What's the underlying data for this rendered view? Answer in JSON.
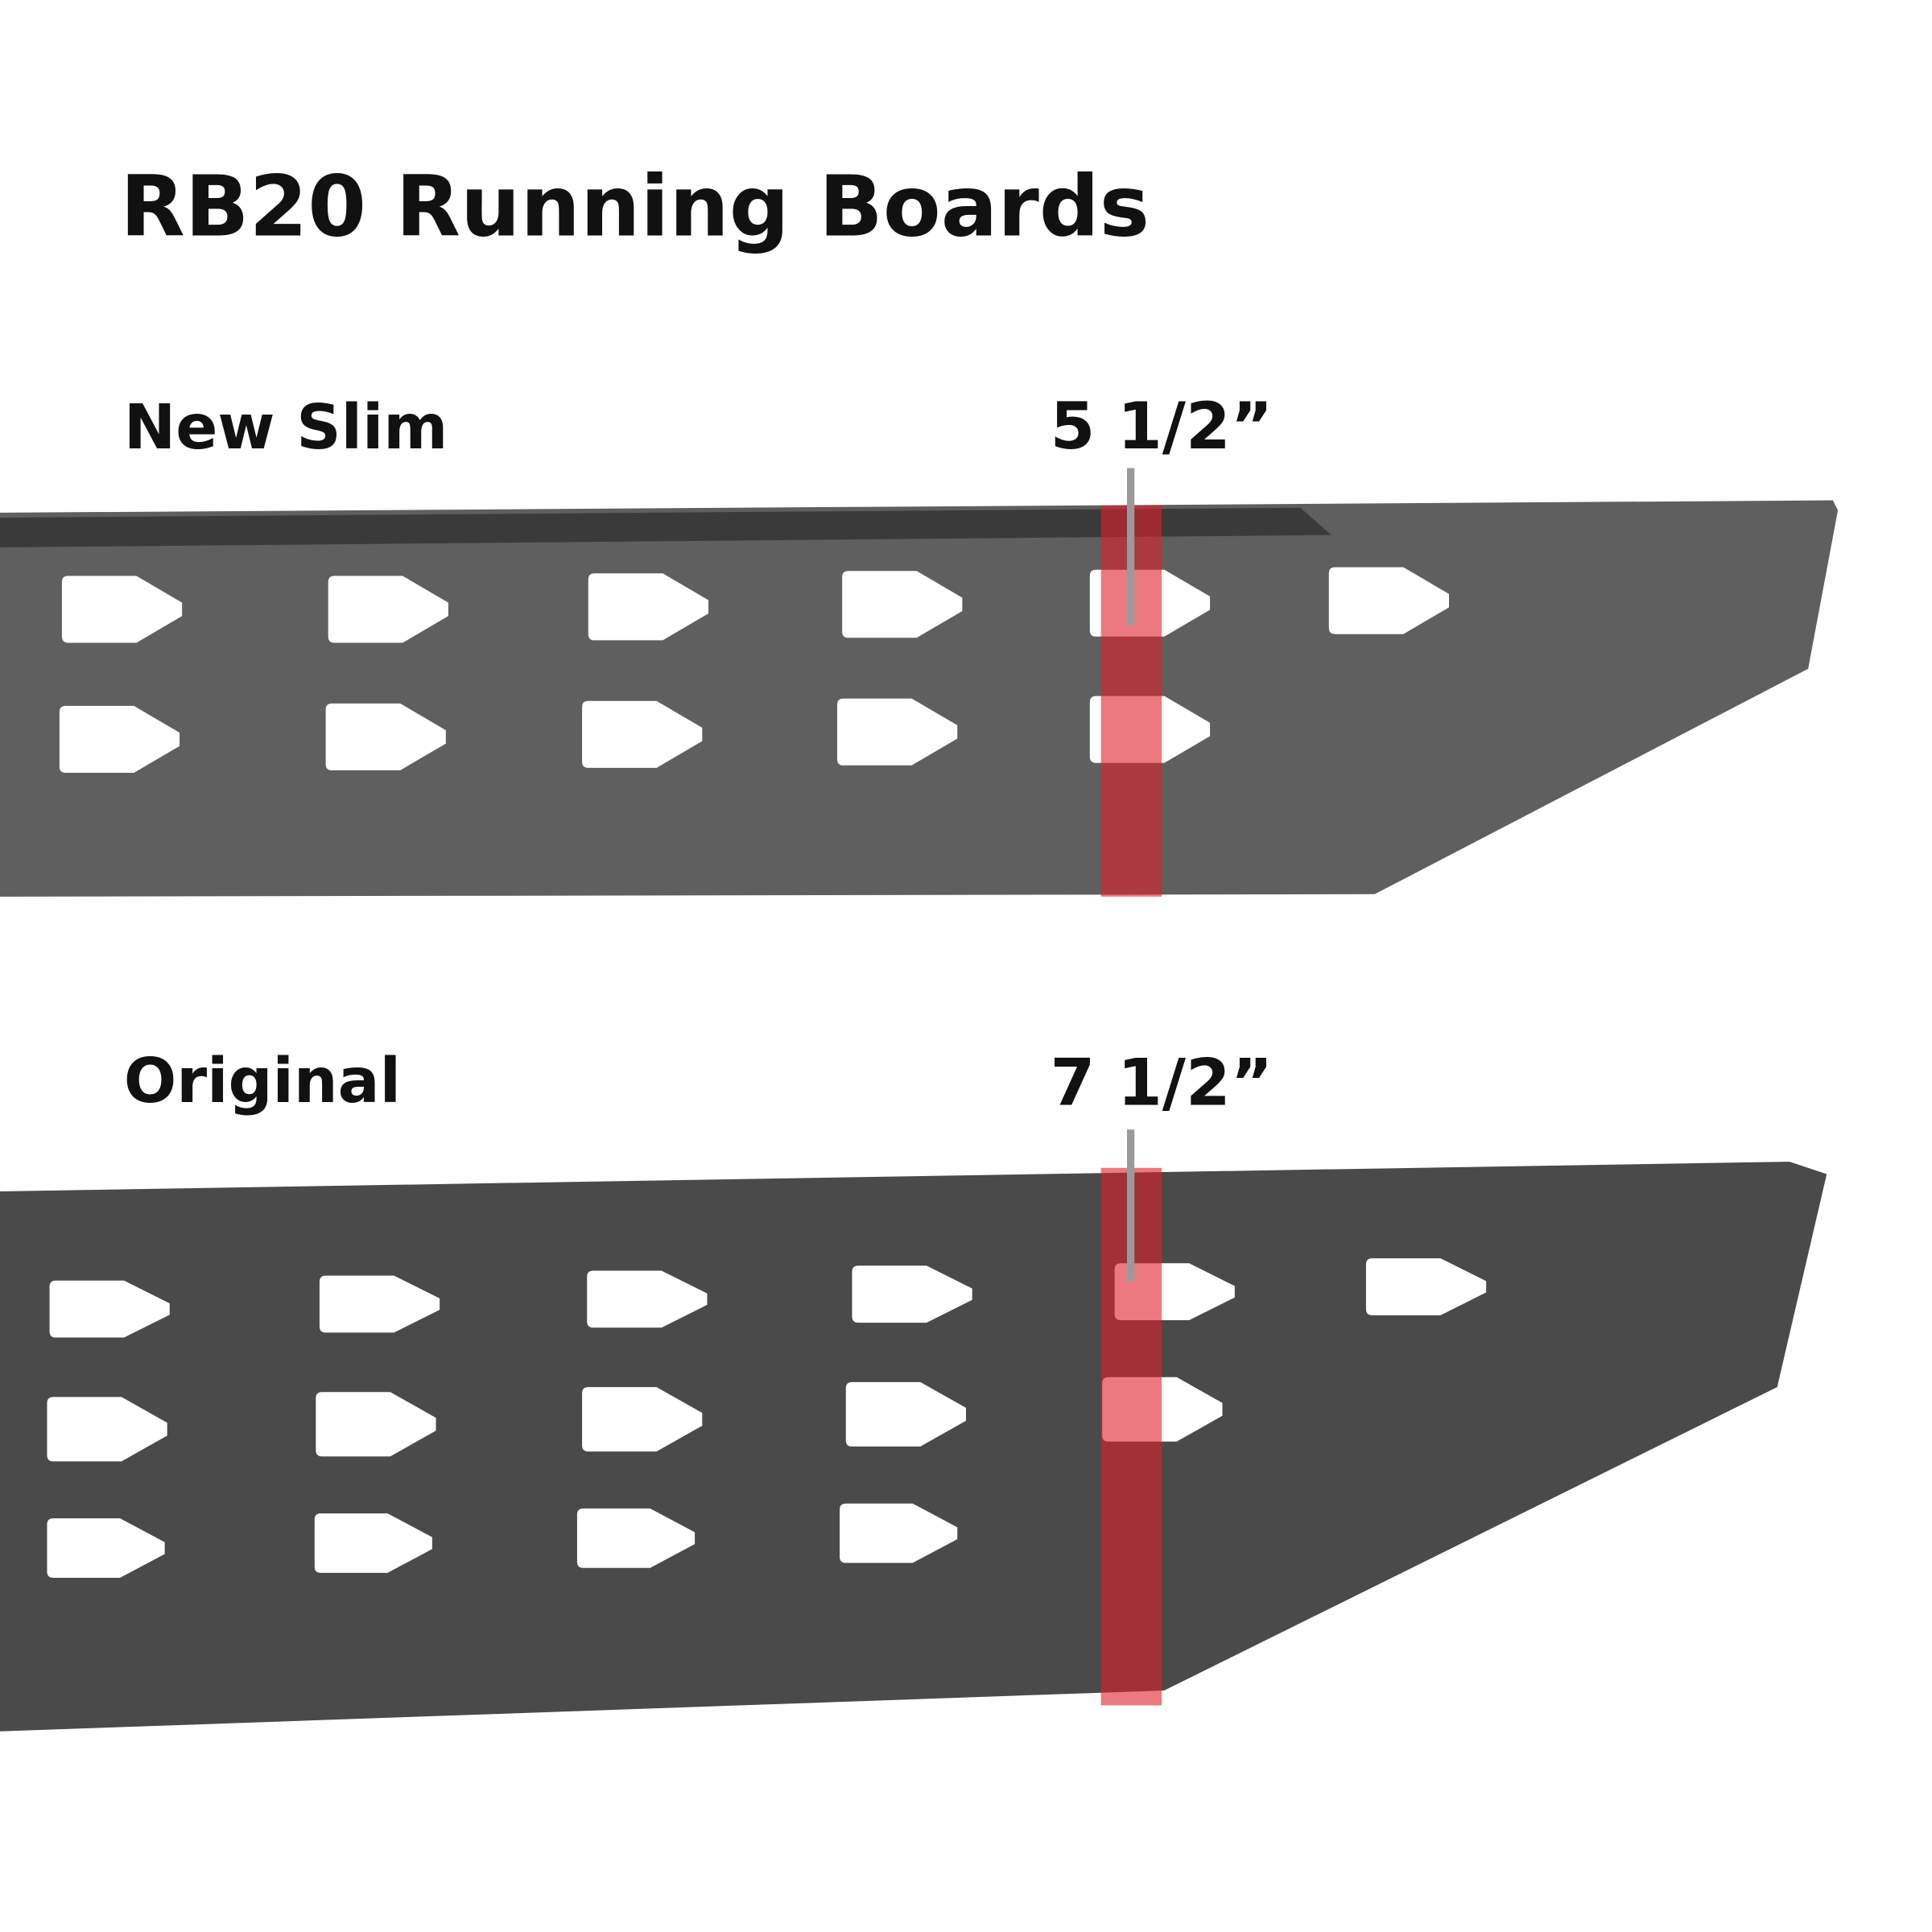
{
  "title": "RB20 Running Boards",
  "boards": [
    {
      "label": "New Slim",
      "measurement": "5 1/2”",
      "hole_rows": 2
    },
    {
      "label": "Original",
      "measurement": "7 1/2”",
      "hole_rows": 3
    }
  ],
  "colors": {
    "board": "#5f5f5f",
    "board_original": "#4a4a4a",
    "highlight": "#e0202a",
    "leader_line": "#9a9a9a",
    "text": "#111111"
  }
}
